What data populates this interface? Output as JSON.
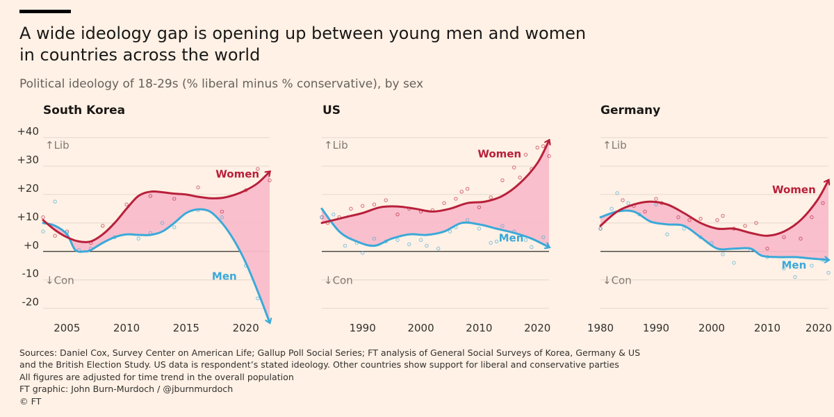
{
  "title_line1": "A wide ideology gap is opening up between young men and women",
  "title_line2": "in countries across the world",
  "subtitle": "Political ideology of 18-29s (% liberal minus % conservative), by sex",
  "y_axis": {
    "ticks": [
      40,
      30,
      20,
      10,
      0,
      -10,
      -20
    ],
    "tick_labels": [
      "+40",
      "+30",
      "+20",
      "+10",
      "+0",
      "-10",
      "-20"
    ],
    "lib_label": "↑Lib",
    "con_label": "↓Con"
  },
  "colors": {
    "women": "#b8203a",
    "men": "#3ba9d8",
    "gap": "#f9bccb",
    "background": "#fff1e5"
  },
  "chart_data": [
    {
      "type": "line",
      "title": "South Korea",
      "xlim": [
        2003,
        2022
      ],
      "ylim": [
        -24,
        40
      ],
      "x_ticks": [
        2005,
        2010,
        2015,
        2020
      ],
      "series": [
        {
          "name": "Women",
          "label_at": [
            2019.3,
            26
          ],
          "points": [
            [
              2003,
              11
            ],
            [
              2004,
              7.5
            ],
            [
              2005,
              5
            ],
            [
              2006,
              3.5
            ],
            [
              2007,
              3.5
            ],
            [
              2008,
              6
            ],
            [
              2009,
              10
            ],
            [
              2010,
              15
            ],
            [
              2011,
              19.5
            ],
            [
              2012,
              21
            ],
            [
              2013,
              20.8
            ],
            [
              2014,
              20.3
            ],
            [
              2015,
              20
            ],
            [
              2016,
              19.2
            ],
            [
              2017,
              18.7
            ],
            [
              2018,
              18.8
            ],
            [
              2019,
              19.8
            ],
            [
              2020,
              21.5
            ],
            [
              2021,
              24
            ],
            [
              2022,
              28
            ]
          ]
        },
        {
          "name": "Men",
          "label_at": [
            2018.2,
            -10
          ],
          "points": [
            [
              2003,
              10
            ],
            [
              2004,
              9
            ],
            [
              2005,
              6
            ],
            [
              2005.7,
              0.5
            ],
            [
              2006.5,
              0
            ],
            [
              2007,
              0.5
            ],
            [
              2008,
              3
            ],
            [
              2009,
              5
            ],
            [
              2010,
              6
            ],
            [
              2011,
              5.8
            ],
            [
              2012,
              5.8
            ],
            [
              2013,
              7
            ],
            [
              2014,
              10
            ],
            [
              2015,
              13.5
            ],
            [
              2016,
              14.8
            ],
            [
              2017,
              14
            ],
            [
              2018,
              10
            ],
            [
              2019,
              4
            ],
            [
              2020,
              -4
            ],
            [
              2021,
              -14
            ],
            [
              2022,
              -25
            ]
          ]
        }
      ],
      "scatter": [
        {
          "series": "Women",
          "points": [
            [
              2003,
              12
            ],
            [
              2004,
              5.5
            ],
            [
              2005,
              7
            ],
            [
              2007,
              3
            ],
            [
              2008,
              9
            ],
            [
              2010,
              16.5
            ],
            [
              2012,
              19.5
            ],
            [
              2014,
              18.5
            ],
            [
              2016,
              22.5
            ],
            [
              2018,
              14
            ],
            [
              2020,
              21.5
            ],
            [
              2021,
              29
            ],
            [
              2022,
              25
            ]
          ]
        },
        {
          "series": "Men",
          "points": [
            [
              2003,
              7
            ],
            [
              2004,
              17.5
            ],
            [
              2005,
              6.5
            ],
            [
              2006,
              0.5
            ],
            [
              2007,
              1
            ],
            [
              2009,
              5
            ],
            [
              2011,
              4.5
            ],
            [
              2012,
              6.5
            ],
            [
              2013,
              10
            ],
            [
              2014,
              8.5
            ],
            [
              2016,
              14.5
            ],
            [
              2018,
              12
            ],
            [
              2020,
              -5
            ],
            [
              2021,
              -16.5
            ]
          ]
        }
      ]
    },
    {
      "type": "line",
      "title": "US",
      "xlim": [
        1983,
        2022
      ],
      "ylim": [
        -24,
        40
      ],
      "x_ticks": [
        1990,
        2000,
        2010,
        2020
      ],
      "series": [
        {
          "name": "Women",
          "label_at": [
            2013.5,
            33
          ],
          "points": [
            [
              1983,
              10
            ],
            [
              1987,
              12
            ],
            [
              1990,
              13.5
            ],
            [
              1993,
              15.5
            ],
            [
              1996,
              15.8
            ],
            [
              1999,
              15
            ],
            [
              2002,
              14
            ],
            [
              2005,
              15
            ],
            [
              2008,
              17
            ],
            [
              2011,
              17.5
            ],
            [
              2014,
              19.5
            ],
            [
              2017,
              24
            ],
            [
              2020,
              31
            ],
            [
              2022,
              39
            ]
          ]
        },
        {
          "name": "Men",
          "label_at": [
            2015.5,
            3.5
          ],
          "points": [
            [
              1983,
              15
            ],
            [
              1986,
              7
            ],
            [
              1989,
              3.5
            ],
            [
              1992,
              2
            ],
            [
              1995,
              4.5
            ],
            [
              1998,
              6
            ],
            [
              2001,
              5.8
            ],
            [
              2004,
              7
            ],
            [
              2007,
              10
            ],
            [
              2010,
              9.5
            ],
            [
              2013,
              8
            ],
            [
              2016,
              6.5
            ],
            [
              2019,
              4.5
            ],
            [
              2022,
              1.5
            ]
          ]
        }
      ],
      "scatter": [
        {
          "series": "Women",
          "points": [
            [
              1983,
              12
            ],
            [
              1984,
              10
            ],
            [
              1986,
              12
            ],
            [
              1988,
              15
            ],
            [
              1990,
              16
            ],
            [
              1992,
              16.5
            ],
            [
              1994,
              18
            ],
            [
              1996,
              13
            ],
            [
              1998,
              15
            ],
            [
              2000,
              14
            ],
            [
              2002,
              14.5
            ],
            [
              2004,
              17
            ],
            [
              2006,
              18.5
            ],
            [
              2007,
              21
            ],
            [
              2008,
              22
            ],
            [
              2010,
              15.5
            ],
            [
              2012,
              19
            ],
            [
              2014,
              25
            ],
            [
              2016,
              29.5
            ],
            [
              2017,
              26
            ],
            [
              2018,
              34
            ],
            [
              2019,
              29
            ],
            [
              2020,
              36.5
            ],
            [
              2021,
              37
            ],
            [
              2022,
              33.5
            ]
          ]
        },
        {
          "series": "Men",
          "points": [
            [
              1983,
              12
            ],
            [
              1985,
              13
            ],
            [
              1987,
              2
            ],
            [
              1989,
              3
            ],
            [
              1990,
              -0.5
            ],
            [
              1992,
              4.5
            ],
            [
              1994,
              3.5
            ],
            [
              1996,
              4
            ],
            [
              1998,
              2.5
            ],
            [
              2000,
              4
            ],
            [
              2001,
              2
            ],
            [
              2003,
              1
            ],
            [
              2005,
              7
            ],
            [
              2006,
              8.5
            ],
            [
              2008,
              11
            ],
            [
              2010,
              8
            ],
            [
              2012,
              3
            ],
            [
              2013,
              3.5
            ],
            [
              2014,
              9
            ],
            [
              2016,
              7
            ],
            [
              2018,
              4
            ],
            [
              2019,
              1.5
            ],
            [
              2021,
              5
            ]
          ]
        }
      ]
    },
    {
      "type": "line",
      "title": "Germany",
      "xlim": [
        1980,
        2021
      ],
      "ylim": [
        -24,
        40
      ],
      "x_ticks": [
        1980,
        1990,
        2000,
        2010,
        2020
      ],
      "x_tick_labels": [
        "1980",
        "1990",
        "2000",
        "2010",
        "2020"
      ],
      "series": [
        {
          "name": "Women",
          "label_at": [
            2014.8,
            20.5
          ],
          "points": [
            [
              1980,
              9
            ],
            [
              1983,
              14
            ],
            [
              1986,
              16.5
            ],
            [
              1989,
              17.5
            ],
            [
              1992,
              16.5
            ],
            [
              1995,
              13.5
            ],
            [
              1998,
              10
            ],
            [
              2001,
              8
            ],
            [
              2004,
              8
            ],
            [
              2007,
              6.5
            ],
            [
              2010,
              5.5
            ],
            [
              2013,
              7
            ],
            [
              2016,
              11
            ],
            [
              2019,
              18
            ],
            [
              2021,
              25
            ]
          ]
        },
        {
          "name": "Men",
          "label_at": [
            2014.8,
            -6
          ],
          "points": [
            [
              1980,
              12
            ],
            [
              1983,
              14
            ],
            [
              1986,
              14
            ],
            [
              1989,
              10.5
            ],
            [
              1992,
              9.5
            ],
            [
              1995,
              9
            ],
            [
              1998,
              5
            ],
            [
              2001,
              1
            ],
            [
              2004,
              1
            ],
            [
              2007,
              1
            ],
            [
              2009,
              -1.5
            ],
            [
              2012,
              -2
            ],
            [
              2015,
              -2
            ],
            [
              2018,
              -2.5
            ],
            [
              2021,
              -3
            ]
          ]
        }
      ],
      "scatter": [
        {
          "series": "Women",
          "points": [
            [
              1980,
              8
            ],
            [
              1984,
              18
            ],
            [
              1986,
              16
            ],
            [
              1988,
              14
            ],
            [
              1990,
              18.5
            ],
            [
              1991,
              17
            ],
            [
              1994,
              12
            ],
            [
              1996,
              11
            ],
            [
              1998,
              11.5
            ],
            [
              2001,
              11
            ],
            [
              2002,
              12.5
            ],
            [
              2004,
              8
            ],
            [
              2006,
              9
            ],
            [
              2008,
              10
            ],
            [
              2010,
              1
            ],
            [
              2013,
              5
            ],
            [
              2016,
              4.5
            ],
            [
              2018,
              12
            ],
            [
              2020,
              17
            ]
          ]
        },
        {
          "series": "Men",
          "points": [
            [
              1980,
              8
            ],
            [
              1982,
              15
            ],
            [
              1983,
              20.5
            ],
            [
              1985,
              17
            ],
            [
              1987,
              13
            ],
            [
              1990,
              16.5
            ],
            [
              1992,
              6
            ],
            [
              1995,
              8
            ],
            [
              1998,
              5
            ],
            [
              2000,
              3
            ],
            [
              2002,
              -1
            ],
            [
              2004,
              -4
            ],
            [
              2007,
              0.5
            ],
            [
              2010,
              -2
            ],
            [
              2013,
              -6
            ],
            [
              2015,
              -9
            ],
            [
              2018,
              -5
            ],
            [
              2020,
              -3
            ],
            [
              2021,
              -7.5
            ]
          ]
        }
      ]
    }
  ],
  "footer": [
    "Sources: Daniel Cox, Survey Center on American Life; Gallup Poll Social Series; FT analysis of General Social Surveys of Korea, Germany & US",
    "and the British Election Study. US data is respondent’s stated ideology. Other countries show support for liberal and conservative parties",
    "All figures are adjusted for time trend in the overall population",
    "FT graphic: John Burn-Murdoch / @jburnmurdoch",
    "© FT"
  ]
}
